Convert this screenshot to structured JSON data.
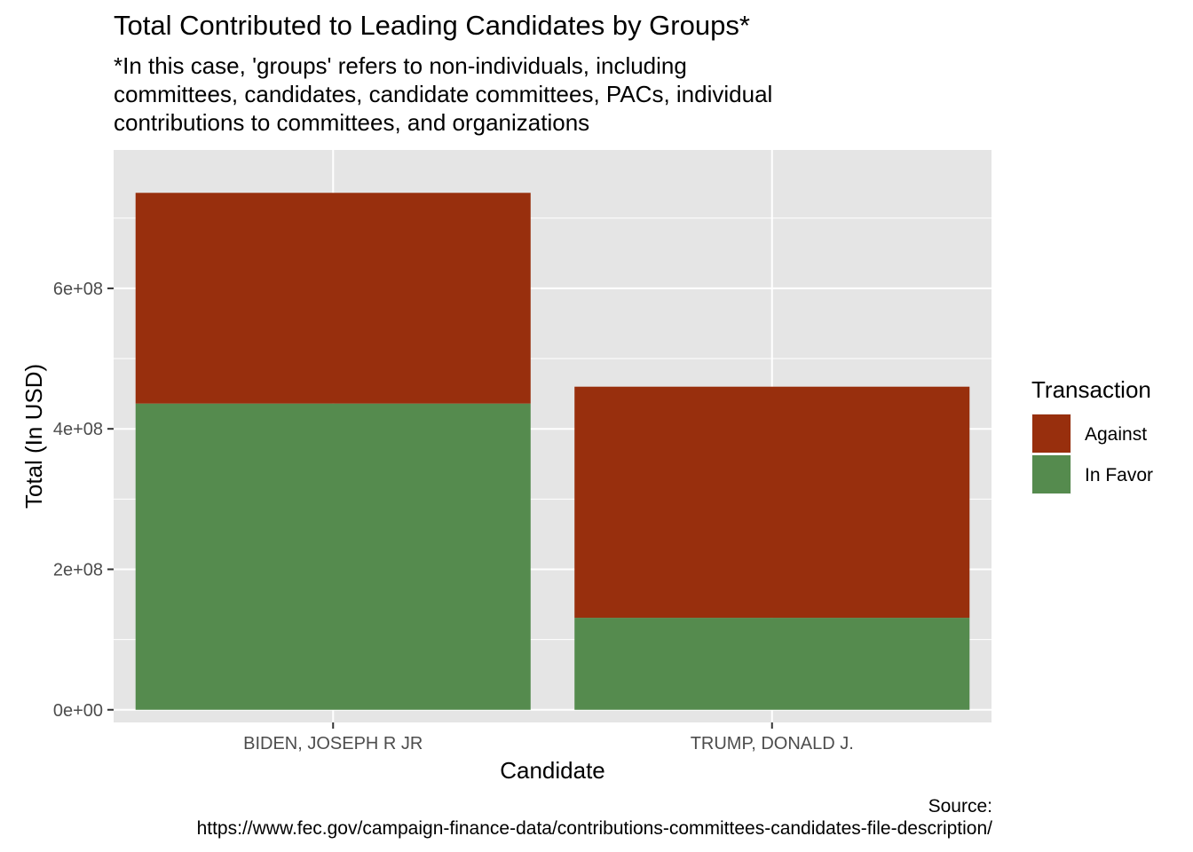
{
  "chart_data": {
    "type": "bar",
    "stacked": true,
    "title": "Total Contributed to Leading Candidates by Groups*",
    "subtitle_lines": [
      "*In this case, 'groups' refers to non-individuals, including",
      "committees, candidates, candidate committees, PACs, individual",
      "contributions to committees, and organizations"
    ],
    "xlabel": "Candidate",
    "ylabel": "Total (In USD)",
    "categories": [
      "BIDEN, JOSEPH R JR",
      "TRUMP, DONALD J."
    ],
    "series": [
      {
        "name": "In Favor",
        "color": "#558B4E",
        "values": [
          436000000,
          131000000
        ]
      },
      {
        "name": "Against",
        "color": "#982F0D",
        "values": [
          300000000,
          329000000
        ]
      }
    ],
    "ylim": [
      -18000000,
      797000000
    ],
    "yticks": [
      0,
      200000000,
      400000000,
      600000000
    ],
    "ytick_labels": [
      "0e+00",
      "2e+08",
      "4e+08",
      "6e+08"
    ],
    "legend_title": "Transaction",
    "legend_order": [
      "Against",
      "In Favor"
    ],
    "legend_position": "right",
    "grid": true,
    "panel_background": "#E5E5E5",
    "caption_lines": [
      "Source:",
      "https://www.fec.gov/campaign-finance-data/contributions-committees-candidates-file-description/"
    ]
  }
}
